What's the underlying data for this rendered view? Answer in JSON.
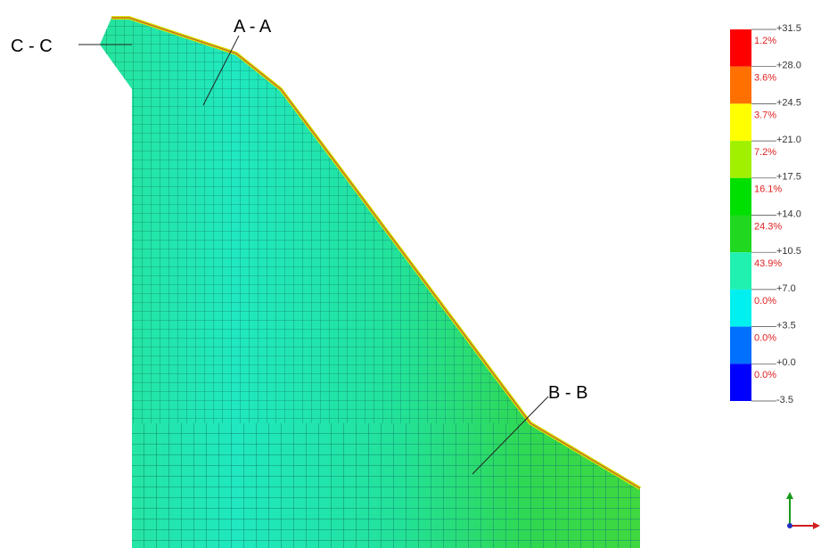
{
  "sections": [
    "C - C",
    "A - A",
    "B - B"
  ],
  "legend": {
    "boundaries": [
      "+31.5",
      "+28.0",
      "+24.5",
      "+21.0",
      "+17.5",
      "+14.0",
      "+10.5",
      "+7.0",
      "+3.5",
      "+0.0",
      "-3.5"
    ],
    "bands": [
      {
        "color": "#ff0000",
        "share": "1.2%"
      },
      {
        "color": "#ff7000",
        "share": "3.6%"
      },
      {
        "color": "#ffff00",
        "share": "3.7%"
      },
      {
        "color": "#a0f000",
        "share": "7.2%"
      },
      {
        "color": "#00e000",
        "share": "16.1%"
      },
      {
        "color": "#20d820",
        "share": "24.3%"
      },
      {
        "color": "#20f0b0",
        "share": "43.9%"
      },
      {
        "color": "#00f0f0",
        "share": "0.0%"
      },
      {
        "color": "#0070ff",
        "share": "0.0%"
      },
      {
        "color": "#0000ff",
        "share": "0.0%"
      }
    ]
  }
}
